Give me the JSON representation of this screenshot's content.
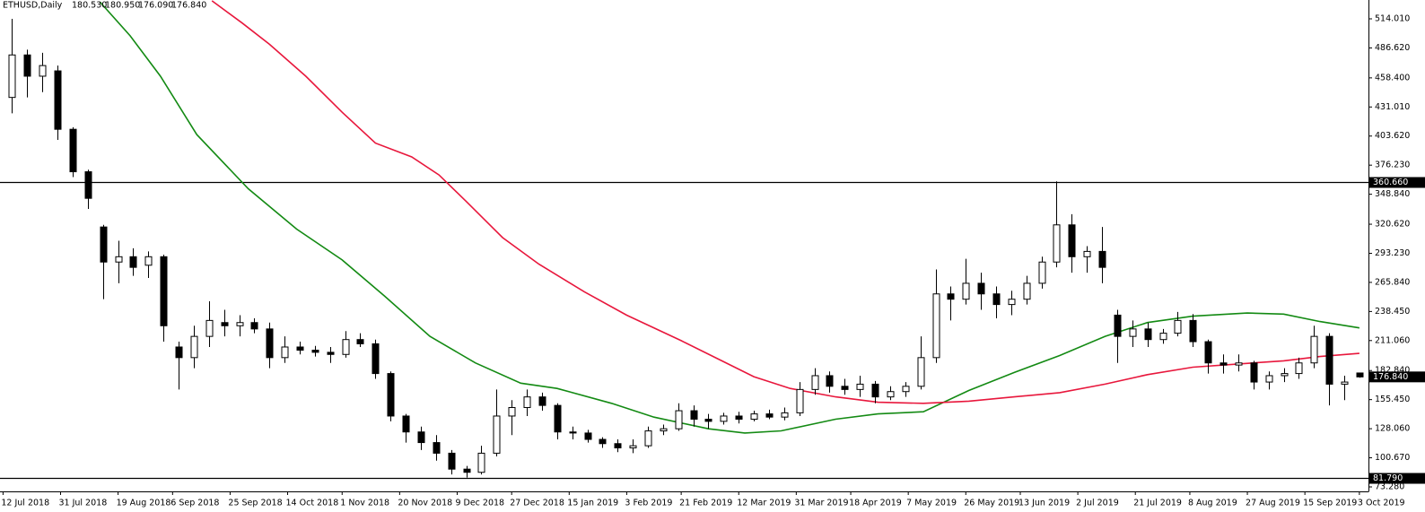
{
  "chart_data": {
    "type": "candlestick",
    "symbol": "ETHUSD,Daily",
    "ohlc_labels": [
      "180.530",
      "180.950",
      "176.090",
      "176.840"
    ],
    "x": [
      "2018-07-15",
      "2018-07-20",
      "2018-07-25",
      "2018-07-30",
      "2018-08-04",
      "2018-08-09",
      "2018-08-14",
      "2018-08-19",
      "2018-08-24",
      "2018-08-29",
      "2018-09-03",
      "2018-09-08",
      "2018-09-13",
      "2018-09-18",
      "2018-09-23",
      "2018-09-28",
      "2018-10-03",
      "2018-10-08",
      "2018-10-13",
      "2018-10-18",
      "2018-10-23",
      "2018-10-28",
      "2018-11-02",
      "2018-11-07",
      "2018-11-12",
      "2018-11-17",
      "2018-11-22",
      "2018-11-27",
      "2018-12-02",
      "2018-12-07",
      "2018-12-12",
      "2018-12-17",
      "2018-12-22",
      "2018-12-27",
      "2019-01-01",
      "2019-01-06",
      "2019-01-11",
      "2019-01-16",
      "2019-01-21",
      "2019-01-26",
      "2019-01-31",
      "2019-02-05",
      "2019-02-10",
      "2019-02-15",
      "2019-02-20",
      "2019-02-25",
      "2019-03-02",
      "2019-03-07",
      "2019-03-12",
      "2019-03-17",
      "2019-03-22",
      "2019-03-27",
      "2019-04-01",
      "2019-04-06",
      "2019-04-11",
      "2019-04-16",
      "2019-04-21",
      "2019-04-26",
      "2019-05-01",
      "2019-05-06",
      "2019-05-11",
      "2019-05-16",
      "2019-05-21",
      "2019-05-26",
      "2019-05-31",
      "2019-06-05",
      "2019-06-10",
      "2019-06-15",
      "2019-06-20",
      "2019-06-25",
      "2019-06-30",
      "2019-07-05",
      "2019-07-10",
      "2019-07-15",
      "2019-07-20",
      "2019-07-25",
      "2019-07-30",
      "2019-08-04",
      "2019-08-09",
      "2019-08-14",
      "2019-08-19",
      "2019-08-24",
      "2019-08-29",
      "2019-09-03",
      "2019-09-08",
      "2019-09-13",
      "2019-09-18",
      "2019-09-23",
      "2019-09-28",
      "2019-10-03"
    ],
    "open": [
      440,
      480,
      460,
      465,
      410,
      370,
      318,
      285,
      290,
      282,
      290,
      205,
      195,
      215,
      228,
      225,
      228,
      222,
      195,
      205,
      202,
      200,
      198,
      212,
      208,
      180,
      140,
      125,
      115,
      105,
      90,
      87,
      105,
      140,
      148,
      158,
      150,
      125,
      124,
      118,
      114,
      110,
      112,
      126,
      128,
      145,
      137,
      135,
      140,
      137,
      142,
      139,
      143,
      165,
      178,
      168,
      165,
      170,
      158,
      163,
      168,
      195,
      255,
      250,
      265,
      255,
      245,
      250,
      265,
      285,
      320,
      290,
      295,
      235,
      215,
      222,
      212,
      218,
      230,
      210,
      190,
      188,
      190,
      172,
      178,
      180,
      190,
      215,
      170,
      180.53
    ],
    "high": [
      514,
      485,
      482,
      470,
      412,
      372,
      320,
      305,
      298,
      295,
      292,
      210,
      225,
      248,
      240,
      235,
      232,
      228,
      215,
      210,
      206,
      205,
      220,
      218,
      212,
      182,
      142,
      130,
      122,
      108,
      93,
      112,
      165,
      155,
      165,
      162,
      152,
      130,
      127,
      120,
      118,
      118,
      130,
      132,
      152,
      150,
      142,
      143,
      144,
      145,
      146,
      148,
      172,
      185,
      182,
      175,
      178,
      173,
      168,
      172,
      215,
      278,
      262,
      288,
      275,
      262,
      258,
      272,
      290,
      361,
      330,
      300,
      318,
      240,
      230,
      228,
      222,
      238,
      236,
      212,
      198,
      198,
      192,
      182,
      185,
      195,
      225,
      218,
      178,
      180.95
    ],
    "low": [
      425,
      440,
      445,
      400,
      365,
      335,
      250,
      265,
      272,
      270,
      210,
      165,
      185,
      205,
      215,
      215,
      218,
      185,
      190,
      198,
      196,
      190,
      195,
      205,
      175,
      135,
      115,
      108,
      98,
      85,
      82,
      85,
      102,
      122,
      140,
      145,
      118,
      118,
      115,
      110,
      106,
      105,
      110,
      122,
      126,
      130,
      128,
      132,
      133,
      135,
      137,
      136,
      140,
      160,
      162,
      160,
      158,
      152,
      155,
      158,
      165,
      190,
      230,
      245,
      240,
      232,
      235,
      245,
      260,
      280,
      275,
      275,
      265,
      190,
      205,
      205,
      208,
      215,
      205,
      180,
      180,
      182,
      165,
      165,
      172,
      175,
      185,
      150,
      155,
      176.09
    ],
    "close": [
      480,
      460,
      470,
      410,
      370,
      345,
      285,
      290,
      280,
      290,
      225,
      195,
      215,
      230,
      225,
      228,
      222,
      195,
      205,
      202,
      200,
      198,
      212,
      208,
      180,
      140,
      125,
      115,
      105,
      90,
      87,
      105,
      140,
      148,
      158,
      150,
      125,
      124,
      118,
      114,
      110,
      112,
      126,
      128,
      145,
      137,
      135,
      140,
      137,
      142,
      139,
      143,
      165,
      178,
      168,
      165,
      170,
      158,
      163,
      168,
      195,
      255,
      250,
      265,
      255,
      245,
      250,
      265,
      285,
      320,
      290,
      295,
      280,
      215,
      222,
      212,
      218,
      230,
      210,
      190,
      188,
      190,
      172,
      178,
      180,
      190,
      215,
      170,
      172,
      176.84
    ],
    "up_color": "#ffffff",
    "down_color": "#000000",
    "series": [
      {
        "color": "#138a13",
        "x": [
          "2018-08-13",
          "2018-08-23",
          "2018-09-02",
          "2018-09-14",
          "2018-10-01",
          "2018-10-17",
          "2018-11-01",
          "2018-11-15",
          "2018-11-30",
          "2018-12-15",
          "2018-12-30",
          "2019-01-11",
          "2019-01-29",
          "2019-02-12",
          "2019-03-02",
          "2019-03-14",
          "2019-03-26",
          "2019-04-13",
          "2019-04-27",
          "2019-05-12",
          "2019-05-27",
          "2019-06-11",
          "2019-06-26",
          "2019-07-11",
          "2019-07-25",
          "2019-08-09",
          "2019-08-27",
          "2019-09-08",
          "2019-09-20",
          "2019-10-03"
        ],
        "values": [
          530,
          498,
          460,
          405,
          354,
          316,
          287,
          253,
          215,
          190,
          171,
          166,
          152,
          139,
          128,
          124,
          126,
          137,
          142,
          144,
          164,
          181,
          197,
          215,
          228,
          234,
          237,
          236,
          229,
          223
        ]
      },
      {
        "color": "#e8173c",
        "x": [
          "2018-09-19",
          "2018-09-29",
          "2018-10-08",
          "2018-10-20",
          "2018-11-01",
          "2018-11-12",
          "2018-11-24",
          "2018-12-03",
          "2018-12-12",
          "2018-12-24",
          "2019-01-05",
          "2019-01-20",
          "2019-02-03",
          "2019-02-21",
          "2019-03-05",
          "2019-03-17",
          "2019-03-29",
          "2019-04-13",
          "2019-04-27",
          "2019-05-12",
          "2019-05-27",
          "2019-06-11",
          "2019-06-26",
          "2019-07-11",
          "2019-07-25",
          "2019-08-09",
          "2019-08-24",
          "2019-09-08",
          "2019-09-20",
          "2019-10-03"
        ],
        "values": [
          531,
          510,
          490,
          460,
          426,
          397,
          384,
          367,
          342,
          308,
          283,
          257,
          235,
          211,
          194,
          177,
          166,
          158,
          153,
          152,
          154,
          158,
          162,
          170,
          179,
          186,
          189,
          192,
          196,
          199
        ]
      }
    ],
    "hlines": [
      {
        "value": 360.66,
        "label": "360.660"
      },
      {
        "value": 81.79,
        "label": "81.790"
      }
    ],
    "price_label": {
      "value": 176.84,
      "label": "176.840"
    },
    "xlim": [
      "2018-07-11",
      "2019-10-06"
    ],
    "xticks": [
      {
        "value": "2018-07-12",
        "label": "12 Jul 2018"
      },
      {
        "value": "2018-07-31",
        "label": "31 Jul 2018"
      },
      {
        "value": "2018-08-19",
        "label": "19 Aug 2018"
      },
      {
        "value": "2018-09-06",
        "label": "6 Sep 2018"
      },
      {
        "value": "2018-09-25",
        "label": "25 Sep 2018"
      },
      {
        "value": "2018-10-14",
        "label": "14 Oct 2018"
      },
      {
        "value": "2018-11-01",
        "label": "1 Nov 2018"
      },
      {
        "value": "2018-11-20",
        "label": "20 Nov 2018"
      },
      {
        "value": "2018-12-09",
        "label": "9 Dec 2018"
      },
      {
        "value": "2018-12-27",
        "label": "27 Dec 2018"
      },
      {
        "value": "2019-01-15",
        "label": "15 Jan 2019"
      },
      {
        "value": "2019-02-03",
        "label": "3 Feb 2019"
      },
      {
        "value": "2019-02-21",
        "label": "21 Feb 2019"
      },
      {
        "value": "2019-03-12",
        "label": "12 Mar 2019"
      },
      {
        "value": "2019-03-31",
        "label": "31 Mar 2019"
      },
      {
        "value": "2019-04-18",
        "label": "18 Apr 2019"
      },
      {
        "value": "2019-05-07",
        "label": "7 May 2019"
      },
      {
        "value": "2019-05-26",
        "label": "26 May 2019"
      },
      {
        "value": "2019-06-13",
        "label": "13 Jun 2019"
      },
      {
        "value": "2019-07-02",
        "label": "2 Jul 2019"
      },
      {
        "value": "2019-07-21",
        "label": "21 Jul 2019"
      },
      {
        "value": "2019-08-08",
        "label": "8 Aug 2019"
      },
      {
        "value": "2019-08-27",
        "label": "27 Aug 2019"
      },
      {
        "value": "2019-09-15",
        "label": "15 Sep 2019"
      },
      {
        "value": "2019-10-03",
        "label": "3 Oct 2019"
      }
    ],
    "ylim": [
      69.05,
      531.74
    ],
    "yticks": [
      {
        "value": 514.01,
        "label": "514.010"
      },
      {
        "value": 486.62,
        "label": "486.620"
      },
      {
        "value": 458.4,
        "label": "458.400"
      },
      {
        "value": 431.01,
        "label": "431.010"
      },
      {
        "value": 403.62,
        "label": "403.620"
      },
      {
        "value": 376.23,
        "label": "376.230"
      },
      {
        "value": 348.84,
        "label": "348.840"
      },
      {
        "value": 320.62,
        "label": "320.620"
      },
      {
        "value": 293.23,
        "label": "293.230"
      },
      {
        "value": 265.84,
        "label": "265.840"
      },
      {
        "value": 238.45,
        "label": "238.450"
      },
      {
        "value": 211.06,
        "label": "211.060"
      },
      {
        "value": 182.84,
        "label": "182.840"
      },
      {
        "value": 155.45,
        "label": "155.450"
      },
      {
        "value": 128.06,
        "label": "128.060"
      },
      {
        "value": 100.67,
        "label": "100.670"
      },
      {
        "value": 73.28,
        "label": "73.280"
      }
    ]
  }
}
